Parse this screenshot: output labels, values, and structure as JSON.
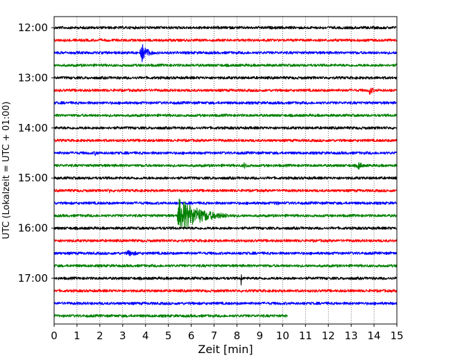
{
  "chart_data": {
    "type": "line",
    "subtype": "helicorder-seismogram",
    "xlabel": "Zeit  [min]",
    "ylabel": "UTC (Lokalzeit = UTC + 01:00)",
    "xlim": [
      0,
      15
    ],
    "x_ticks": [
      "0",
      "1",
      "2",
      "3",
      "4",
      "5",
      "6",
      "7",
      "8",
      "9",
      "10",
      "11",
      "12",
      "13",
      "14",
      "15"
    ],
    "y_tick_labels": [
      "12:00",
      "13:00",
      "14:00",
      "15:00",
      "16:00",
      "17:00"
    ],
    "row_minutes": 15,
    "row_count": 24,
    "row_start_times": [
      "12:00",
      "12:15",
      "12:30",
      "12:45",
      "13:00",
      "13:15",
      "13:30",
      "13:45",
      "14:00",
      "14:15",
      "14:30",
      "14:45",
      "15:00",
      "15:15",
      "15:30",
      "15:45",
      "16:00",
      "16:15",
      "16:30",
      "16:45",
      "17:00",
      "17:15",
      "17:30",
      "17:45"
    ],
    "trace_color_cycle": [
      "#000000",
      "#ff0000",
      "#0000ff",
      "#008000"
    ],
    "grid": "vertical dotted at each minute",
    "last_trace_end_min": 10.2,
    "events": [
      {
        "row": 2,
        "time_min": 3.8,
        "amplitude": "large",
        "duration_min": 0.8
      },
      {
        "row": 5,
        "time_min": 13.8,
        "amplitude": "medium",
        "duration_min": 0.6
      },
      {
        "row": 10,
        "time_min": 1.8,
        "amplitude": "small",
        "duration_min": 0.4
      },
      {
        "row": 11,
        "time_min": 8.3,
        "amplitude": "small",
        "duration_min": 0.7
      },
      {
        "row": 11,
        "time_min": 13.3,
        "amplitude": "medium",
        "duration_min": 0.6
      },
      {
        "row": 13,
        "time_min": 2.4,
        "amplitude": "small",
        "duration_min": 0.3
      },
      {
        "row": 14,
        "time_min": 9.7,
        "amplitude": "small",
        "duration_min": 0.4
      },
      {
        "row": 15,
        "time_min": 5.45,
        "amplitude": "very-large",
        "duration_min": 2.8
      },
      {
        "row": 18,
        "time_min": 3.2,
        "amplitude": "small",
        "duration_min": 1.6
      },
      {
        "row": 20,
        "time_min": 8.2,
        "amplitude": "spike",
        "duration_min": 0.1
      }
    ]
  }
}
